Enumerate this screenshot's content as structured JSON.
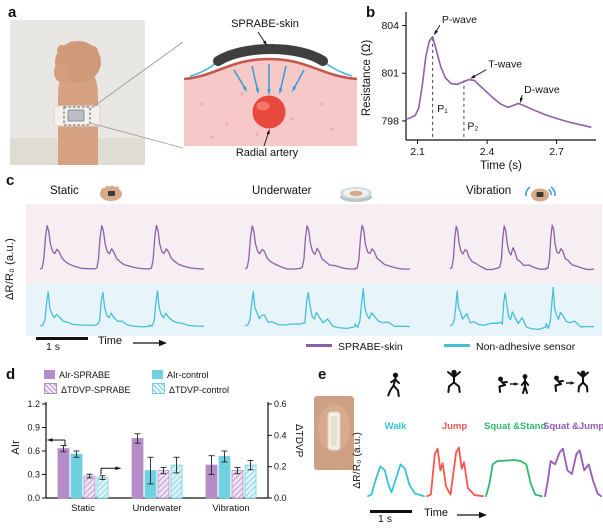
{
  "panels": {
    "a": {
      "tag": "a",
      "sprabe_label": "SPRABE-skin",
      "artery_label": "Radial artery"
    },
    "b": {
      "tag": "b"
    },
    "c": {
      "tag": "c"
    },
    "d": {
      "tag": "d"
    },
    "e": {
      "tag": "e"
    }
  },
  "colors": {
    "sprabe_purple": "#8d5fa9",
    "control_cyan": "#45c0d8",
    "bar_purple": "#b48cc8",
    "bar_cyan": "#6fd0e0",
    "artery_red": "#e8493c",
    "patch_gray": "#3f3f3f",
    "coupling_blue": "#2e9fd4",
    "skin": "#d9a98b"
  },
  "icons": {
    "panel_c": [
      "wrist-sensor-icon",
      "underwater-dish-icon",
      "vibrating-wrist-icon"
    ],
    "panel_e": [
      "walk-icon",
      "jump-icon",
      "squat-stand-icon",
      "squat-jump-icon"
    ]
  },
  "chart_data": [
    {
      "id": "radial-pulse-waveform",
      "type": "line",
      "xlabel": "Time (s)",
      "ylabel": "Resistance (Ω)",
      "xlim": [
        2.05,
        2.87
      ],
      "ylim": [
        796.8,
        804.6
      ],
      "xticks": [
        "2.1",
        "2.4",
        "2.7"
      ],
      "yticks": [
        "798",
        "801",
        "804"
      ],
      "color": "#8d5fa9",
      "x": [
        2.05,
        2.07,
        2.09,
        2.105,
        2.12,
        2.135,
        2.15,
        2.165,
        2.18,
        2.2,
        2.22,
        2.245,
        2.27,
        2.295,
        2.32,
        2.345,
        2.37,
        2.4,
        2.43,
        2.46,
        2.49,
        2.51,
        2.535,
        2.56,
        2.6,
        2.65,
        2.7,
        2.76,
        2.82,
        2.85
      ],
      "y": [
        798.1,
        798.2,
        798.35,
        798.8,
        800.2,
        802.0,
        803.0,
        803.3,
        802.5,
        801.4,
        800.7,
        800.35,
        800.3,
        800.45,
        800.6,
        800.55,
        800.2,
        799.8,
        799.4,
        799.05,
        798.85,
        798.95,
        799.1,
        798.95,
        798.7,
        798.4,
        798.15,
        797.9,
        797.7,
        797.6
      ],
      "dashed_lines": [
        {
          "x": 2.165,
          "y0": 797.0,
          "y1": 803.3
        },
        {
          "x": 2.3,
          "y0": 797.0,
          "y1": 800.55
        }
      ],
      "annotations": [
        {
          "text": "P-wave",
          "x": 2.205,
          "y": 804.15,
          "tx": 2.175,
          "ty": 803.5
        },
        {
          "text": "T-wave",
          "x": 2.405,
          "y": 801.35,
          "tx": 2.335,
          "ty": 800.72
        },
        {
          "text": "D-wave",
          "x": 2.56,
          "y": 799.75,
          "tx": 2.545,
          "ty": 799.25
        },
        {
          "text": "P₁",
          "x": 2.185,
          "y": 798.55
        },
        {
          "text": "P₂",
          "x": 2.315,
          "y": 797.45
        }
      ]
    },
    {
      "id": "pulse-robustness-traces",
      "type": "line-multi",
      "conditions": [
        "Static",
        "Underwater",
        "Vibration"
      ],
      "ylabel": "ΔR/R₀ (a.u.)",
      "xlabel": "Time",
      "scalebar": "1 s",
      "beats_per_trace": 3,
      "series": [
        {
          "name": "SPRABE-skin",
          "color": "#8d5fa9"
        },
        {
          "name": "Non-adhesive sensor",
          "color": "#45c0d8"
        }
      ],
      "beat_sprabe": [
        [
          0,
          0.1
        ],
        [
          0.04,
          0.12
        ],
        [
          0.07,
          0.3
        ],
        [
          0.1,
          0.74
        ],
        [
          0.13,
          0.97
        ],
        [
          0.16,
          0.86
        ],
        [
          0.19,
          0.6
        ],
        [
          0.23,
          0.45
        ],
        [
          0.27,
          0.41
        ],
        [
          0.31,
          0.5
        ],
        [
          0.35,
          0.44
        ],
        [
          0.4,
          0.32
        ],
        [
          0.46,
          0.25
        ],
        [
          0.54,
          0.19
        ],
        [
          0.64,
          0.15
        ],
        [
          0.76,
          0.12
        ],
        [
          0.88,
          0.11
        ],
        [
          1,
          0.1
        ]
      ],
      "beat_control": [
        [
          0,
          0.1
        ],
        [
          0.05,
          0.11
        ],
        [
          0.09,
          0.24
        ],
        [
          0.12,
          0.68
        ],
        [
          0.15,
          0.9
        ],
        [
          0.18,
          0.52
        ],
        [
          0.22,
          0.36
        ],
        [
          0.26,
          0.31
        ],
        [
          0.3,
          0.39
        ],
        [
          0.35,
          0.29
        ],
        [
          0.42,
          0.23
        ],
        [
          0.5,
          0.18
        ],
        [
          0.6,
          0.14
        ],
        [
          0.72,
          0.12
        ],
        [
          0.86,
          0.1
        ],
        [
          1,
          0.09
        ]
      ],
      "jitter_sprabe": [
        0.004,
        0.012,
        0.02
      ],
      "jitter_control": [
        0.02,
        0.05,
        0.07
      ]
    },
    {
      "id": "pulse-metrics-bars",
      "type": "bar",
      "categories": [
        "Static",
        "Underwater",
        "Vibration"
      ],
      "left_axis": {
        "label": "AIr",
        "lim": [
          0,
          1.2
        ],
        "ticks": [
          "0.0",
          "0.3",
          "0.6",
          "0.9",
          "1.2"
        ]
      },
      "right_axis": {
        "label": "ΔTDVP",
        "lim": [
          0,
          0.6
        ],
        "ticks": [
          "0.0",
          "0.2",
          "0.4",
          "0.6"
        ]
      },
      "series": [
        {
          "name": "AIr-SPRABE",
          "axis": "left",
          "style": "solid",
          "color": "#b48cc8",
          "values": [
            0.63,
            0.76,
            0.42
          ],
          "errors": [
            0.04,
            0.06,
            0.12
          ]
        },
        {
          "name": "AIr-control",
          "axis": "left",
          "style": "solid",
          "color": "#6fd0e0",
          "values": [
            0.56,
            0.35,
            0.53
          ],
          "errors": [
            0.04,
            0.17,
            0.07
          ]
        },
        {
          "name": "ΔTDVP-SPRABE",
          "axis": "right",
          "style": "hatched",
          "pattern": "hp",
          "color": "#b48cc8",
          "values": [
            0.14,
            0.175,
            0.175
          ],
          "errors": [
            0.012,
            0.02,
            0.02
          ]
        },
        {
          "name": "ΔTDVP-control",
          "axis": "right",
          "style": "hatched",
          "pattern": "hc",
          "color": "#6fd0e0",
          "values": [
            0.13,
            0.21,
            0.21
          ],
          "errors": [
            0.012,
            0.05,
            0.03
          ]
        }
      ]
    },
    {
      "id": "motion-waveforms",
      "type": "line-multi",
      "ylabel": "ΔR/R₀ (a.u.)",
      "xlabel": "Time",
      "scalebar": "1 s",
      "activities": [
        {
          "name": "Walk",
          "color": "#35c4d7",
          "points": [
            [
              0,
              0.07
            ],
            [
              0.06,
              0.1
            ],
            [
              0.14,
              0.38
            ],
            [
              0.22,
              0.62
            ],
            [
              0.3,
              0.55
            ],
            [
              0.36,
              0.3
            ],
            [
              0.42,
              0.14
            ],
            [
              0.5,
              0.4
            ],
            [
              0.58,
              0.66
            ],
            [
              0.66,
              0.58
            ],
            [
              0.74,
              0.28
            ],
            [
              0.84,
              0.12
            ],
            [
              1,
              0.07
            ]
          ]
        },
        {
          "name": "Jump",
          "color": "#f4564e",
          "points": [
            [
              0,
              0.07
            ],
            [
              0.07,
              0.1
            ],
            [
              0.14,
              0.85
            ],
            [
              0.19,
              0.95
            ],
            [
              0.24,
              0.55
            ],
            [
              0.28,
              0.68
            ],
            [
              0.34,
              0.25
            ],
            [
              0.42,
              0.1
            ],
            [
              0.52,
              0.88
            ],
            [
              0.57,
              0.97
            ],
            [
              0.62,
              0.58
            ],
            [
              0.66,
              0.7
            ],
            [
              0.73,
              0.22
            ],
            [
              0.85,
              0.09
            ],
            [
              1,
              0.07
            ]
          ]
        },
        {
          "name": "Squat &Stand",
          "color": "#2fb96e",
          "points": [
            [
              0,
              0.07
            ],
            [
              0.06,
              0.3
            ],
            [
              0.12,
              0.66
            ],
            [
              0.2,
              0.72
            ],
            [
              0.35,
              0.73
            ],
            [
              0.5,
              0.74
            ],
            [
              0.62,
              0.72
            ],
            [
              0.72,
              0.66
            ],
            [
              0.8,
              0.3
            ],
            [
              0.88,
              0.1
            ],
            [
              1,
              0.07
            ]
          ]
        },
        {
          "name": "Squat &Jump",
          "color": "#9b59b6",
          "points": [
            [
              0,
              0.07
            ],
            [
              0.05,
              0.35
            ],
            [
              0.1,
              0.72
            ],
            [
              0.18,
              0.66
            ],
            [
              0.26,
              0.88
            ],
            [
              0.32,
              0.95
            ],
            [
              0.4,
              0.55
            ],
            [
              0.48,
              0.48
            ],
            [
              0.56,
              0.85
            ],
            [
              0.62,
              0.92
            ],
            [
              0.7,
              0.55
            ],
            [
              0.78,
              0.66
            ],
            [
              0.86,
              0.35
            ],
            [
              0.94,
              0.12
            ],
            [
              1,
              0.07
            ]
          ]
        }
      ]
    }
  ]
}
